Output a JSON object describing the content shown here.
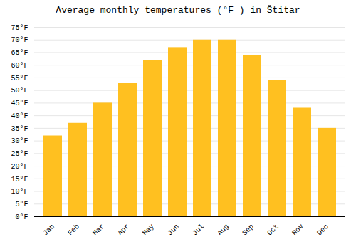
{
  "chart_data": {
    "type": "bar",
    "title": "Average monthly temperatures (°F ) in Štitar",
    "categories": [
      "Jan",
      "Feb",
      "Mar",
      "Apr",
      "May",
      "Jun",
      "Jul",
      "Aug",
      "Sep",
      "Oct",
      "Nov",
      "Dec"
    ],
    "values": [
      32,
      37,
      45,
      53,
      62,
      67,
      70,
      70,
      64,
      54,
      43,
      35
    ],
    "color": "#FFC020",
    "ylim": [
      0,
      75
    ],
    "yticks": [
      {
        "value": 0,
        "label": "0°F"
      },
      {
        "value": 5,
        "label": "5°F"
      },
      {
        "value": 10,
        "label": "10°F"
      },
      {
        "value": 15,
        "label": "15°F"
      },
      {
        "value": 20,
        "label": "20°F"
      },
      {
        "value": 25,
        "label": "25°F"
      },
      {
        "value": 30,
        "label": "30°F"
      },
      {
        "value": 35,
        "label": "35°F"
      },
      {
        "value": 40,
        "label": "40°F"
      },
      {
        "value": 45,
        "label": "45°F"
      },
      {
        "value": 50,
        "label": "50°F"
      },
      {
        "value": 55,
        "label": "55°F"
      },
      {
        "value": 60,
        "label": "60°F"
      },
      {
        "value": 65,
        "label": "65°F"
      },
      {
        "value": 70,
        "label": "70°F"
      },
      {
        "value": 75,
        "label": "75°F"
      }
    ],
    "grid": true
  }
}
